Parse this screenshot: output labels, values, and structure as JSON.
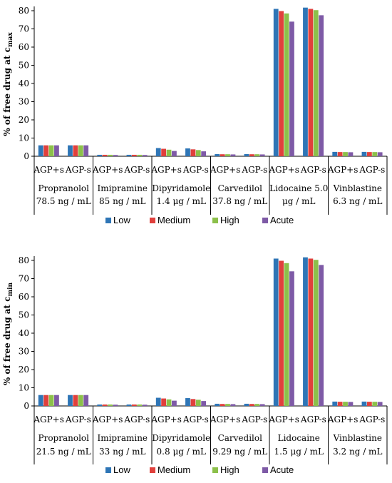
{
  "colors": {
    "Low": "#2e75b6",
    "Medium": "#e0403c",
    "High": "#8cc04a",
    "Acute": "#7e5aa6"
  },
  "chart_data": [
    {
      "type": "bar",
      "ylabel_main": "% of free drug at c",
      "ylabel_sub": "max",
      "ylim": [
        0,
        80
      ],
      "yticks": [
        0,
        10,
        20,
        30,
        40,
        50,
        60,
        70,
        80
      ],
      "grid": false,
      "legend_position": "bottom",
      "categories": [
        "AGP+s",
        "AGP-s",
        "AGP+s",
        "AGP-s",
        "AGP+s",
        "AGP-s",
        "AGP+s",
        "AGP-s",
        "AGP+s",
        "AGP-s",
        "AGP+s",
        "AGP-s"
      ],
      "groups": [
        {
          "line1": "Propranolol",
          "line2": "78.5 ng / mL"
        },
        {
          "line1": "Imipramine",
          "line2": "85 ng / mL"
        },
        {
          "line1": "Dipyridamole",
          "line2": "1.4 μg / mL"
        },
        {
          "line1": "Carvedilol",
          "line2": "37.8 ng / mL"
        },
        {
          "line1": "Lidocaine 5.0",
          "line2": "μg / mL"
        },
        {
          "line1": "Vinblastine",
          "line2": "6.3 ng / mL"
        }
      ],
      "series": [
        {
          "name": "Low",
          "values": [
            6.0,
            6.0,
            0.8,
            0.8,
            4.5,
            4.3,
            1.2,
            1.2,
            81.0,
            81.7,
            2.4,
            2.4
          ]
        },
        {
          "name": "Medium",
          "values": [
            6.0,
            6.0,
            0.8,
            0.8,
            4.1,
            3.8,
            1.1,
            1.1,
            79.8,
            81.0,
            2.3,
            2.3
          ]
        },
        {
          "name": "High",
          "values": [
            6.0,
            6.0,
            0.8,
            0.8,
            3.6,
            3.4,
            1.1,
            1.1,
            78.5,
            80.3,
            2.3,
            2.3
          ]
        },
        {
          "name": "Acute",
          "values": [
            6.0,
            6.0,
            0.7,
            0.7,
            2.9,
            2.7,
            1.0,
            1.0,
            74.0,
            77.5,
            2.2,
            2.2
          ]
        }
      ]
    },
    {
      "type": "bar",
      "ylabel_main": "% of free drug at c",
      "ylabel_sub": "min",
      "ylim": [
        0,
        80
      ],
      "yticks": [
        0,
        10,
        20,
        30,
        40,
        50,
        60,
        70,
        80
      ],
      "grid": false,
      "legend_position": "bottom",
      "categories": [
        "AGP+s",
        "AGP-s",
        "AGP+s",
        "AGP-s",
        "AGP+s",
        "AGP-s",
        "AGP+s",
        "AGP-s",
        "AGP+s",
        "AGP-s",
        "AGP+s",
        "AGP-s"
      ],
      "groups": [
        {
          "line1": "Propranolol",
          "line2": "21.5 ng / mL"
        },
        {
          "line1": "Imipramine",
          "line2": "33 ng / mL"
        },
        {
          "line1": "Dipyridamole",
          "line2": "0.8 μg / mL"
        },
        {
          "line1": "Carvedilol",
          "line2": "9.29 ng / mL"
        },
        {
          "line1": "Lidocaine",
          "line2": "1.5  μg / mL"
        },
        {
          "line1": "Vinblastine",
          "line2": "3.2 ng / mL"
        }
      ],
      "series": [
        {
          "name": "Low",
          "values": [
            6.0,
            6.0,
            0.8,
            0.8,
            4.5,
            4.3,
            1.2,
            1.2,
            81.0,
            81.7,
            2.4,
            2.4
          ]
        },
        {
          "name": "Medium",
          "values": [
            6.0,
            6.0,
            0.8,
            0.8,
            4.1,
            3.8,
            1.1,
            1.1,
            79.8,
            81.0,
            2.3,
            2.3
          ]
        },
        {
          "name": "High",
          "values": [
            6.0,
            6.0,
            0.8,
            0.8,
            3.6,
            3.4,
            1.1,
            1.1,
            78.5,
            80.3,
            2.3,
            2.3
          ]
        },
        {
          "name": "Acute",
          "values": [
            6.0,
            6.0,
            0.7,
            0.7,
            2.9,
            2.7,
            1.0,
            1.0,
            74.0,
            77.5,
            2.2,
            2.2
          ]
        }
      ]
    }
  ]
}
